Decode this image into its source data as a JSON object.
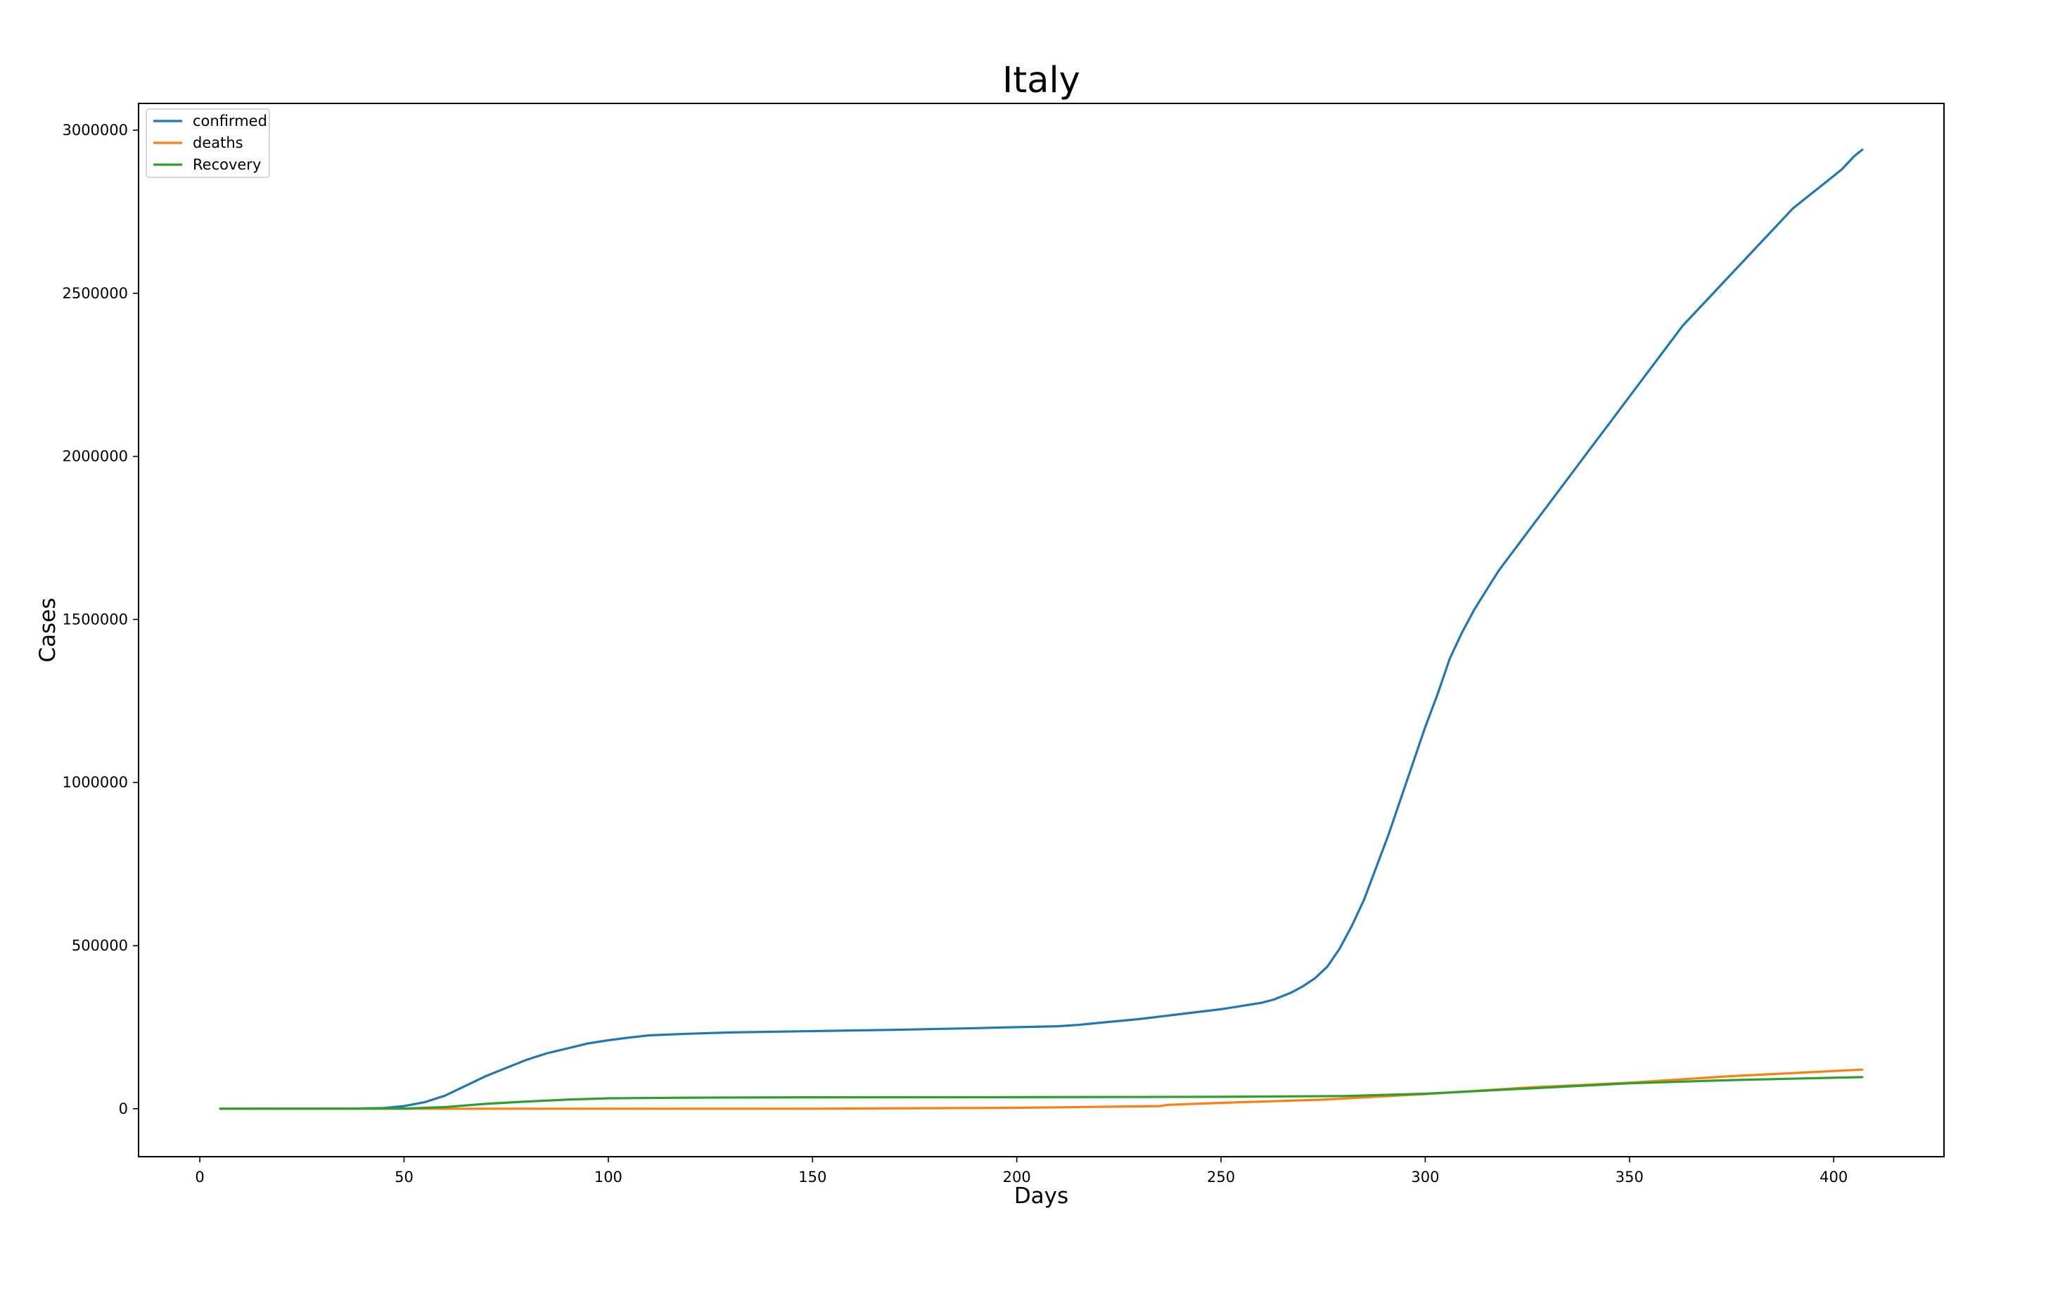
{
  "chart_data": {
    "type": "line",
    "title": "Italy",
    "xlabel": "Days",
    "ylabel": "Cases",
    "xlim": [
      -15,
      427
    ],
    "ylim": [
      -147000,
      3082000
    ],
    "xticks": [
      0,
      50,
      100,
      150,
      200,
      250,
      300,
      350,
      400
    ],
    "yticks": [
      0,
      500000,
      1000000,
      1500000,
      2000000,
      2500000,
      3000000
    ],
    "xtick_labels": [
      "0",
      "50",
      "100",
      "150",
      "200",
      "250",
      "300",
      "350",
      "400"
    ],
    "ytick_labels": [
      "0",
      "500000",
      "1000000",
      "1500000",
      "2000000",
      "2500000",
      "3000000"
    ],
    "grid": false,
    "legend_position": "upper left",
    "series": [
      {
        "name": "confirmed",
        "color": "#1f77b4",
        "x": [
          5,
          20,
          35,
          45,
          50,
          55,
          60,
          65,
          70,
          75,
          80,
          85,
          90,
          95,
          100,
          105,
          110,
          120,
          130,
          150,
          170,
          190,
          200,
          210,
          215,
          220,
          230,
          240,
          250,
          255,
          260,
          263,
          267,
          270,
          273,
          276,
          279,
          282,
          285,
          288,
          291,
          294,
          297,
          300,
          303,
          306,
          309,
          312,
          315,
          318,
          321,
          324,
          327,
          330,
          333,
          336,
          339,
          342,
          345,
          348,
          351,
          354,
          357,
          360,
          363,
          366,
          369,
          372,
          375,
          378,
          381,
          384,
          387,
          390,
          393,
          396,
          399,
          402,
          405,
          407
        ],
        "y": [
          0,
          0,
          200,
          2000,
          8000,
          20000,
          40000,
          70000,
          100000,
          125000,
          150000,
          170000,
          185000,
          200000,
          210000,
          218000,
          225000,
          230000,
          234000,
          238000,
          242000,
          247000,
          250000,
          253000,
          257000,
          263000,
          275000,
          290000,
          305000,
          315000,
          325000,
          335000,
          355000,
          375000,
          400000,
          435000,
          490000,
          560000,
          640000,
          740000,
          840000,
          950000,
          1060000,
          1170000,
          1270000,
          1380000,
          1460000,
          1530000,
          1590000,
          1650000,
          1700000,
          1750000,
          1800000,
          1850000,
          1900000,
          1950000,
          2000000,
          2050000,
          2100000,
          2150000,
          2200000,
          2250000,
          2300000,
          2350000,
          2400000,
          2440000,
          2480000,
          2520000,
          2560000,
          2600000,
          2640000,
          2680000,
          2720000,
          2760000,
          2790000,
          2820000,
          2850000,
          2880000,
          2920000,
          2940000
        ]
      },
      {
        "name": "deaths",
        "color": "#ff7f0e",
        "x": [
          5,
          50,
          100,
          150,
          200,
          220,
          235,
          236,
          237,
          250,
          275,
          300,
          325,
          350,
          375,
          407
        ],
        "y": [
          0,
          0,
          0,
          0,
          3000,
          6000,
          8000,
          10000,
          12000,
          18000,
          28000,
          45000,
          65000,
          80000,
          100000,
          120000
        ]
      },
      {
        "name": "Recovery",
        "color": "#2ca02c",
        "x": [
          5,
          50,
          60,
          70,
          80,
          90,
          100,
          120,
          150,
          200,
          250,
          280,
          300,
          325,
          350,
          375,
          407
        ],
        "y": [
          0,
          500,
          5000,
          15000,
          22000,
          28000,
          32000,
          34000,
          35000,
          35500,
          36500,
          39000,
          46000,
          62000,
          78000,
          88000,
          97000
        ]
      }
    ]
  }
}
